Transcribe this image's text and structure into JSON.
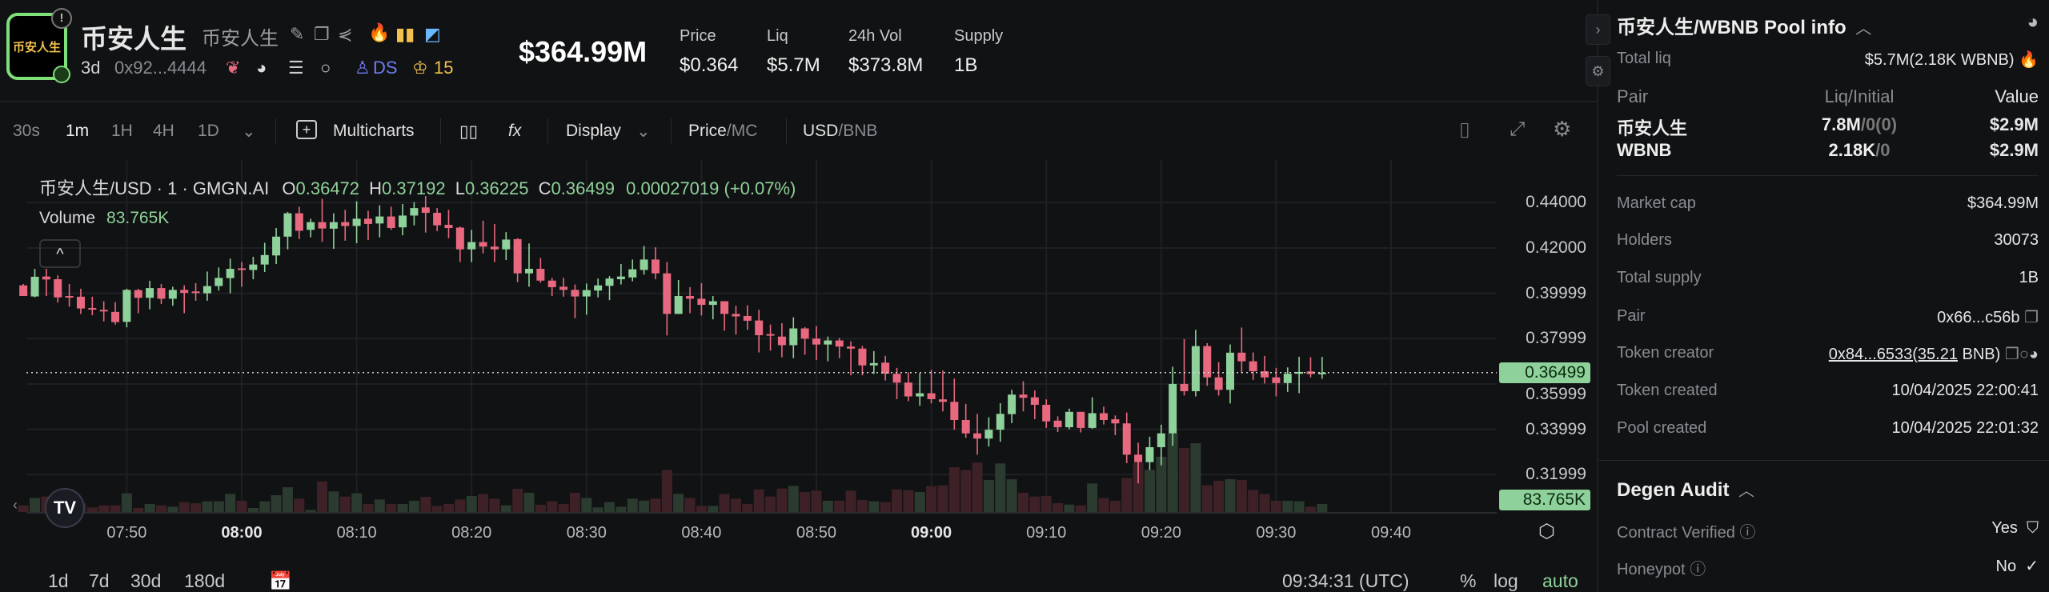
{
  "token": {
    "logo_text": "币安人生",
    "name": "币安人生",
    "alt_name": "币安人生",
    "age": "3d",
    "address": "0x92...4444",
    "ds_label": "DS",
    "crown_count": "15",
    "market_cap": "$364.99M",
    "stats": [
      {
        "label": "Price",
        "value": "$0.364"
      },
      {
        "label": "Liq",
        "value": "$5.7M"
      },
      {
        "label": "24h Vol",
        "value": "$373.8M"
      },
      {
        "label": "Supply",
        "value": "1B"
      }
    ]
  },
  "toolbar": {
    "intervals": [
      "30s",
      "1m",
      "1H",
      "4H",
      "1D"
    ],
    "active_interval": "1m",
    "multicharts": "Multicharts",
    "display": "Display",
    "price": "Price",
    "mc": "MC",
    "usd": "USD",
    "bnb": "BNB",
    "slash": "/"
  },
  "chart": {
    "legend_title": "币安人生/USD · 1 · GMGN.AI",
    "o_label": "O",
    "o": "0.36472",
    "h_label": "H",
    "h": "0.37192",
    "l_label": "L",
    "l": "0.36225",
    "c_label": "C",
    "c": "0.36499",
    "change": "0.00027019 (+0.07%)",
    "volume_label": "Volume",
    "volume_value": "83.765K",
    "last_price_tag": "0.36499",
    "last_volume_tag": "83.765K",
    "timestamp": "09:34:31 (UTC)",
    "ranges": [
      "1d",
      "7d",
      "30d",
      "180d"
    ],
    "percent": "%",
    "log": "log",
    "auto": "auto",
    "colors": {
      "up": "#8fd19a",
      "down": "#e8697f",
      "vol_up": "#2b3b2f",
      "vol_down": "#3d2127",
      "grid": "#1f2024"
    }
  },
  "chart_data": {
    "type": "candlestick",
    "interval": "1m",
    "y_ticks": [
      {
        "value": 0.44,
        "label": "0.44000"
      },
      {
        "value": 0.42,
        "label": "0.42000"
      },
      {
        "value": 0.4,
        "label": "0.39999"
      },
      {
        "value": 0.38,
        "label": "0.37999"
      },
      {
        "value": 0.36,
        "label": "0.35999"
      },
      {
        "value": 0.34,
        "label": "0.33999"
      },
      {
        "value": 0.32,
        "label": "0.31999"
      }
    ],
    "x_ticks": [
      {
        "label": "07:50",
        "bold": false
      },
      {
        "label": "08:00",
        "bold": true
      },
      {
        "label": "08:10",
        "bold": false
      },
      {
        "label": "08:20",
        "bold": false
      },
      {
        "label": "08:30",
        "bold": false
      },
      {
        "label": "08:40",
        "bold": false
      },
      {
        "label": "08:50",
        "bold": false
      },
      {
        "label": "09:00",
        "bold": true
      },
      {
        "label": "09:10",
        "bold": false
      },
      {
        "label": "09:20",
        "bold": false
      },
      {
        "label": "09:30",
        "bold": false
      },
      {
        "label": "09:40",
        "bold": false
      }
    ],
    "last_price": 0.36499,
    "columns": [
      "time",
      "open",
      "high",
      "low",
      "close",
      "volume"
    ],
    "candles": [
      [
        "07:41",
        0.4035,
        0.4041,
        0.3988,
        0.3988,
        70000
      ],
      [
        "07:42",
        0.3986,
        0.4108,
        0.3982,
        0.4073,
        148000
      ],
      [
        "07:43",
        0.4074,
        0.4108,
        0.3988,
        0.4061,
        162000
      ],
      [
        "07:44",
        0.4062,
        0.4079,
        0.3959,
        0.3982,
        98000
      ],
      [
        "07:45",
        0.3988,
        0.4041,
        0.3941,
        0.3982,
        120000
      ],
      [
        "07:46",
        0.3985,
        0.402,
        0.3909,
        0.3933,
        92000
      ],
      [
        "07:47",
        0.3935,
        0.3985,
        0.3903,
        0.3929,
        48000
      ],
      [
        "07:48",
        0.3927,
        0.3965,
        0.3876,
        0.392,
        70000
      ],
      [
        "07:49",
        0.3918,
        0.3961,
        0.3862,
        0.3873,
        70000
      ],
      [
        "07:50",
        0.3874,
        0.402,
        0.385,
        0.4015,
        196000
      ],
      [
        "07:51",
        0.4014,
        0.402,
        0.3912,
        0.398,
        42000
      ],
      [
        "07:52",
        0.398,
        0.4055,
        0.3929,
        0.4023,
        84000
      ],
      [
        "07:53",
        0.4023,
        0.4041,
        0.3953,
        0.3976,
        70000
      ],
      [
        "07:54",
        0.3976,
        0.4029,
        0.3945,
        0.4015,
        56000
      ],
      [
        "07:55",
        0.4015,
        0.4035,
        0.3912,
        0.4002,
        104000
      ],
      [
        "07:56",
        0.4008,
        0.4045,
        0.3967,
        0.4003,
        92000
      ],
      [
        "07:57",
        0.4,
        0.4096,
        0.3967,
        0.4032,
        112000
      ],
      [
        "07:58",
        0.4032,
        0.4114,
        0.4012,
        0.4068,
        112000
      ],
      [
        "07:59",
        0.4067,
        0.4153,
        0.4,
        0.4108,
        190000
      ],
      [
        "08:00",
        0.411,
        0.4138,
        0.4029,
        0.4106,
        118000
      ],
      [
        "08:01",
        0.4103,
        0.4161,
        0.4062,
        0.4127,
        42000
      ],
      [
        "08:02",
        0.4127,
        0.4223,
        0.4094,
        0.4169,
        112000
      ],
      [
        "08:03",
        0.4167,
        0.4288,
        0.4129,
        0.425,
        176000
      ],
      [
        "08:04",
        0.425,
        0.4359,
        0.4194,
        0.4353,
        260000
      ],
      [
        "08:05",
        0.4353,
        0.4382,
        0.4239,
        0.4276,
        140000
      ],
      [
        "08:06",
        0.428,
        0.4329,
        0.4247,
        0.4314,
        22000
      ],
      [
        "08:07",
        0.4314,
        0.4417,
        0.4227,
        0.4286,
        322000
      ],
      [
        "08:08",
        0.4285,
        0.4353,
        0.4196,
        0.4314,
        216000
      ],
      [
        "08:09",
        0.4314,
        0.4368,
        0.4232,
        0.4297,
        162000
      ],
      [
        "08:10",
        0.4297,
        0.4406,
        0.4221,
        0.4329,
        196000
      ],
      [
        "08:11",
        0.4329,
        0.4364,
        0.4235,
        0.4306,
        84000
      ],
      [
        "08:12",
        0.4308,
        0.4388,
        0.4247,
        0.4339,
        132000
      ],
      [
        "08:13",
        0.4339,
        0.4382,
        0.428,
        0.4288,
        84000
      ],
      [
        "08:14",
        0.4291,
        0.4394,
        0.4256,
        0.4343,
        84000
      ],
      [
        "08:15",
        0.4343,
        0.4402,
        0.43,
        0.4376,
        118000
      ],
      [
        "08:16",
        0.4379,
        0.4429,
        0.4268,
        0.4355,
        160000
      ],
      [
        "08:17",
        0.4355,
        0.4376,
        0.4274,
        0.43,
        64000
      ],
      [
        "08:18",
        0.4302,
        0.4368,
        0.4243,
        0.4288,
        84000
      ],
      [
        "08:19",
        0.429,
        0.4294,
        0.4138,
        0.4194,
        132000
      ],
      [
        "08:20",
        0.4194,
        0.428,
        0.4138,
        0.4226,
        168000
      ],
      [
        "08:21",
        0.4226,
        0.432,
        0.4176,
        0.4206,
        188000
      ],
      [
        "08:22",
        0.4206,
        0.4306,
        0.4138,
        0.4194,
        140000
      ],
      [
        "08:23",
        0.4194,
        0.427,
        0.4147,
        0.4237,
        70000
      ],
      [
        "08:24",
        0.4239,
        0.4243,
        0.4049,
        0.4088,
        244000
      ],
      [
        "08:25",
        0.4088,
        0.422,
        0.4029,
        0.4108,
        202000
      ],
      [
        "08:26",
        0.4108,
        0.4156,
        0.4047,
        0.4056,
        76000
      ],
      [
        "08:27",
        0.4056,
        0.4068,
        0.3988,
        0.4027,
        112000
      ],
      [
        "08:28",
        0.4029,
        0.4068,
        0.3985,
        0.4015,
        84000
      ],
      [
        "08:29",
        0.4015,
        0.4039,
        0.389,
        0.3986,
        202000
      ],
      [
        "08:30",
        0.3986,
        0.4043,
        0.3906,
        0.4014,
        148000
      ],
      [
        "08:31",
        0.4012,
        0.4065,
        0.3982,
        0.4035,
        48000
      ],
      [
        "08:32",
        0.4033,
        0.4076,
        0.397,
        0.4065,
        104000
      ],
      [
        "08:33",
        0.4062,
        0.4129,
        0.4039,
        0.4074,
        56000
      ],
      [
        "08:34",
        0.407,
        0.4149,
        0.4053,
        0.4106,
        140000
      ],
      [
        "08:35",
        0.4103,
        0.4209,
        0.4082,
        0.4149,
        120000
      ],
      [
        "08:36",
        0.4149,
        0.4203,
        0.4062,
        0.4088,
        140000
      ],
      [
        "08:37",
        0.4088,
        0.4138,
        0.3814,
        0.3909,
        442000
      ],
      [
        "08:38",
        0.3909,
        0.4059,
        0.3909,
        0.3988,
        190000
      ],
      [
        "08:39",
        0.3988,
        0.4027,
        0.3912,
        0.3976,
        148000
      ],
      [
        "08:40",
        0.3976,
        0.4045,
        0.3902,
        0.3949,
        64000
      ],
      [
        "08:41",
        0.3949,
        0.3988,
        0.3885,
        0.3965,
        64000
      ],
      [
        "08:42",
        0.3965,
        0.3965,
        0.3835,
        0.3909,
        188000
      ],
      [
        "08:43",
        0.3909,
        0.3945,
        0.3818,
        0.3898,
        140000
      ],
      [
        "08:44",
        0.39,
        0.3947,
        0.3839,
        0.3879,
        84000
      ],
      [
        "08:45",
        0.388,
        0.3927,
        0.3739,
        0.3815,
        238000
      ],
      [
        "08:46",
        0.382,
        0.3862,
        0.3747,
        0.3815,
        162000
      ],
      [
        "08:47",
        0.3809,
        0.3868,
        0.3718,
        0.3771,
        246000
      ],
      [
        "08:48",
        0.3771,
        0.3894,
        0.3714,
        0.3845,
        274000
      ],
      [
        "08:49",
        0.3845,
        0.3851,
        0.3729,
        0.38,
        210000
      ],
      [
        "08:50",
        0.38,
        0.3855,
        0.3706,
        0.3774,
        224000
      ],
      [
        "08:51",
        0.3774,
        0.3809,
        0.37,
        0.3792,
        118000
      ],
      [
        "08:52",
        0.3792,
        0.3803,
        0.3714,
        0.3765,
        118000
      ],
      [
        "08:53",
        0.3765,
        0.3788,
        0.3638,
        0.3756,
        224000
      ],
      [
        "08:54",
        0.3756,
        0.3768,
        0.3638,
        0.3682,
        126000
      ],
      [
        "08:55",
        0.3682,
        0.3745,
        0.3644,
        0.3692,
        112000
      ],
      [
        "08:56",
        0.3694,
        0.3724,
        0.3615,
        0.3645,
        104000
      ],
      [
        "08:57",
        0.3645,
        0.3671,
        0.3533,
        0.3606,
        238000
      ],
      [
        "08:58",
        0.3606,
        0.3651,
        0.3524,
        0.3545,
        230000
      ],
      [
        "08:59",
        0.3545,
        0.3647,
        0.3504,
        0.3559,
        210000
      ],
      [
        "09:00",
        0.3559,
        0.3662,
        0.3514,
        0.3533,
        272000
      ],
      [
        "09:01",
        0.3532,
        0.3659,
        0.3479,
        0.3521,
        280000
      ],
      [
        "09:02",
        0.3521,
        0.3624,
        0.3398,
        0.3441,
        470000
      ],
      [
        "09:03",
        0.3441,
        0.3512,
        0.3362,
        0.3382,
        442000
      ],
      [
        "09:04",
        0.3382,
        0.3468,
        0.3288,
        0.3359,
        518000
      ],
      [
        "09:05",
        0.3359,
        0.3453,
        0.3324,
        0.3398,
        336000
      ],
      [
        "09:06",
        0.3398,
        0.3515,
        0.3345,
        0.3468,
        510000
      ],
      [
        "09:07",
        0.3467,
        0.3574,
        0.3427,
        0.3553,
        344000
      ],
      [
        "09:08",
        0.3553,
        0.3612,
        0.3479,
        0.3539,
        202000
      ],
      [
        "09:09",
        0.3541,
        0.3571,
        0.3445,
        0.3508,
        162000
      ],
      [
        "09:10",
        0.3508,
        0.3532,
        0.3406,
        0.3435,
        168000
      ],
      [
        "09:11",
        0.3438,
        0.3457,
        0.3388,
        0.3409,
        92000
      ],
      [
        "09:12",
        0.3409,
        0.3491,
        0.34,
        0.3477,
        78000
      ],
      [
        "09:13",
        0.3477,
        0.3477,
        0.3386,
        0.3406,
        70000
      ],
      [
        "09:14",
        0.3406,
        0.3541,
        0.3402,
        0.3471,
        300000
      ],
      [
        "09:15",
        0.3471,
        0.35,
        0.3421,
        0.3441,
        146000
      ],
      [
        "09:16",
        0.3444,
        0.3461,
        0.3374,
        0.3426,
        118000
      ],
      [
        "09:17",
        0.3426,
        0.3474,
        0.3251,
        0.3288,
        358000
      ],
      [
        "09:18",
        0.3288,
        0.3341,
        0.3161,
        0.3255,
        518000
      ],
      [
        "09:19",
        0.3255,
        0.3367,
        0.322,
        0.3321,
        442000
      ],
      [
        "09:20",
        0.3321,
        0.342,
        0.3241,
        0.3382,
        580000
      ],
      [
        "09:21",
        0.3382,
        0.3676,
        0.3327,
        0.36,
        826000
      ],
      [
        "09:22",
        0.36,
        0.3798,
        0.3549,
        0.3568,
        672000
      ],
      [
        "09:23",
        0.3568,
        0.3839,
        0.3545,
        0.3767,
        722000
      ],
      [
        "09:24",
        0.3767,
        0.378,
        0.3592,
        0.3629,
        280000
      ],
      [
        "09:25",
        0.3629,
        0.3696,
        0.3549,
        0.3574,
        328000
      ],
      [
        "09:26",
        0.3574,
        0.3774,
        0.3514,
        0.3738,
        344000
      ],
      [
        "09:27",
        0.3738,
        0.3849,
        0.3647,
        0.37,
        336000
      ],
      [
        "09:28",
        0.37,
        0.3739,
        0.3618,
        0.3656,
        232000
      ],
      [
        "09:29",
        0.3656,
        0.3724,
        0.3602,
        0.3629,
        190000
      ],
      [
        "09:30",
        0.3629,
        0.3671,
        0.3545,
        0.3604,
        118000
      ],
      [
        "09:31",
        0.3604,
        0.3673,
        0.3565,
        0.3645,
        118000
      ],
      [
        "09:32",
        0.3645,
        0.372,
        0.3559,
        0.3653,
        112000
      ],
      [
        "09:33",
        0.3655,
        0.3718,
        0.3629,
        0.3644,
        56000
      ],
      [
        "09:34",
        0.36472,
        0.37192,
        0.36225,
        0.36499,
        83765
      ]
    ]
  },
  "pool": {
    "title": "币安人生/WBNB Pool info",
    "total_liq_label": "Total liq",
    "total_liq_value": "$5.7M(2.18K WBNB)",
    "pair_headers": [
      "Pair",
      "Liq/Initial",
      "Value"
    ],
    "pairs": [
      {
        "name": "币安人生",
        "liq": "7.8M",
        "initial": "/0(0)",
        "value": "$2.9M"
      },
      {
        "name": "WBNB",
        "liq": "2.18K",
        "initial": "/0",
        "value": "$2.9M"
      }
    ],
    "rows": [
      {
        "label": "Market cap",
        "value": "$364.99M"
      },
      {
        "label": "Holders",
        "value": "30073"
      },
      {
        "label": "Total supply",
        "value": "1B"
      },
      {
        "label": "Pair",
        "value": "0x66...c56b"
      },
      {
        "label": "Token creator",
        "value": "0x84...6533(35.21",
        "suffix": " BNB)"
      },
      {
        "label": "Token created",
        "value": "10/04/2025 22:00:41"
      },
      {
        "label": "Pool created",
        "value": "10/04/2025 22:01:32"
      }
    ]
  },
  "audit": {
    "title": "Degen Audit",
    "rows": [
      {
        "label": "Contract Verified",
        "value": "Yes"
      },
      {
        "label": "Honeypot",
        "value": "No"
      }
    ]
  }
}
